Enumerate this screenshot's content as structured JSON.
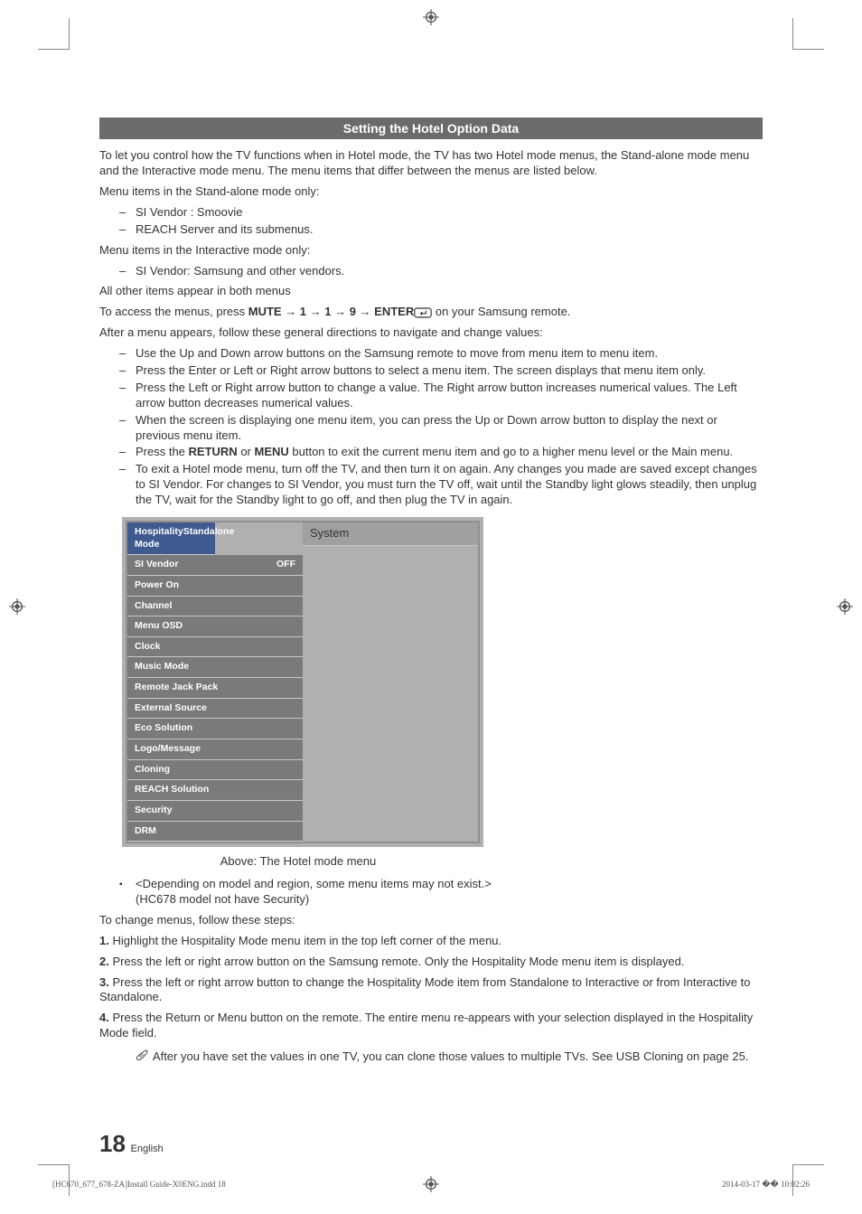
{
  "header": {
    "title": "Setting the Hotel Option Data"
  },
  "intro": "To let you control how the TV functions when in Hotel mode, the TV has two Hotel mode menus, the Stand-alone mode menu and the Interactive mode menu. The menu items that differ between the menus are listed below.",
  "standalone_heading": "Menu items in the Stand-alone mode only:",
  "standalone_items": [
    "SI Vendor : Smoovie",
    "REACH Server and its submenus."
  ],
  "interactive_heading": "Menu items in the Interactive mode only:",
  "interactive_items": [
    "SI Vendor: Samsung and other vendors."
  ],
  "all_other": "All other items appear in both menus",
  "access_prefix": "To access the menus, press ",
  "access_seq": "MUTE → 1 → 1 → 9 → ENTER",
  "access_suffix": " on your Samsung remote.",
  "after_menu": "After a menu appears, follow these general directions to navigate and change values:",
  "nav_items_pre_return": [
    "Use the Up and Down arrow buttons on the Samsung remote to move from menu item to menu item.",
    "Press the Enter or Left or Right arrow buttons to select a menu item. The screen displays that menu item only.",
    "Press the Left or Right arrow button to change a value. The Right arrow button increases numerical values. The Left arrow button decreases numerical values.",
    "When the screen is displaying one menu item, you can press the Up or Down arrow button to display the next or previous menu item."
  ],
  "return_line_prefix": "Press the ",
  "return_word": "RETURN",
  "return_or": " or ",
  "menu_word": "MENU",
  "return_line_suffix": " button to exit the current menu item and go to a higher menu level or the Main menu.",
  "exit_line": "To exit a Hotel mode menu, turn off the TV, and then turn it on again. Any changes you made are saved except changes to SI Vendor. For changes to SI Vendor, you must turn the TV off, wait until the Standby light glows steadily, then unplug the TV, wait for the Standby light to go off, and then plug the TV in again.",
  "menu": {
    "top_left_label": "Hospitality Mode",
    "top_left_value": "Standalone",
    "top_right": "System",
    "left_items": [
      {
        "label": "SI Vendor",
        "value": "OFF"
      },
      {
        "label": "Power On",
        "value": ""
      },
      {
        "label": "Channel",
        "value": ""
      },
      {
        "label": "Menu OSD",
        "value": ""
      },
      {
        "label": "Clock",
        "value": ""
      },
      {
        "label": "Music Mode",
        "value": ""
      },
      {
        "label": "Remote Jack Pack",
        "value": ""
      },
      {
        "label": "External Source",
        "value": ""
      },
      {
        "label": "Eco Solution",
        "value": ""
      },
      {
        "label": "Logo/Message",
        "value": ""
      },
      {
        "label": "Cloning",
        "value": ""
      },
      {
        "label": "REACH Solution",
        "value": ""
      },
      {
        "label": "Security",
        "value": ""
      },
      {
        "label": "DRM",
        "value": ""
      }
    ]
  },
  "caption": "Above: The Hotel mode menu",
  "caveat1": "<Depending on model and region, some menu items may not exist.>",
  "caveat2": "(HC678 model not have Security)",
  "change_heading": "To change menus, follow these steps:",
  "steps": [
    "Highlight the Hospitality Mode menu item in the top left corner of the menu.",
    "Press the left or right arrow button on the Samsung remote. Only the Hospitality Mode menu item is displayed.",
    "Press the left or right arrow button to change the Hospitality Mode item from Standalone to Interactive or from Interactive to Standalone.",
    "Press the Return or Menu button on the remote. The entire menu re-appears with your selection displayed in the Hospitality Mode field."
  ],
  "note": "After you have set the values in one TV, you can clone those values to multiple TVs. See USB Cloning on page 25.",
  "page_number": "18",
  "page_lang": "English",
  "footer": {
    "left": "[HC670_677_678-ZA]Install Guide-X0ENG.indd   18",
    "right": "2014-03-17   �� 10:02:26"
  },
  "colors": {
    "header_bg": "#6b6b6b",
    "menu_row_bg": "#7a7a7a",
    "menu_active_bg": "#3e5a8f",
    "menu_right_header_bg": "#a0a0a0",
    "menu_body_bg": "#8e8e8e"
  }
}
